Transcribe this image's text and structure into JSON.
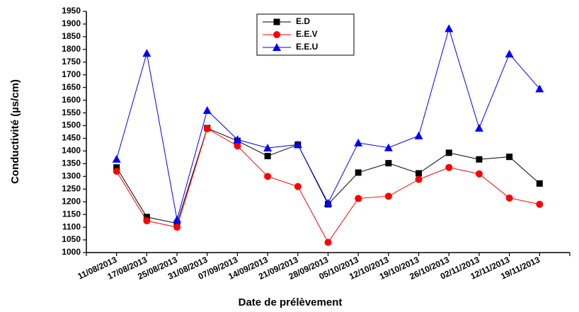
{
  "chart_data": {
    "type": "line",
    "x_label": "Date de prélèvement",
    "y_label": "Conductivité (µs/cm)",
    "categories": [
      "11/08/2013",
      "17/08/2013",
      "25/08/2013",
      "31/08/2013",
      "07/09/2013",
      "14/09/2013",
      "21/09/2013",
      "28/09/2013",
      "05/10/2013",
      "12/10/2013",
      "19/10/2013",
      "26/10/2013",
      "02/11/2013",
      "12/11/2013",
      "19/11/2013"
    ],
    "series": [
      {
        "name": "E.D",
        "color": "#000000",
        "marker": "square",
        "values": [
          1335,
          1140,
          1115,
          1490,
          1440,
          1380,
          1425,
          1190,
          1315,
          1352,
          1312,
          1393,
          1367,
          1377,
          1272
        ]
      },
      {
        "name": "E.E.V",
        "color": "#ff0000",
        "marker": "circle",
        "values": [
          1320,
          1125,
          1100,
          1488,
          1420,
          1300,
          1260,
          1040,
          1213,
          1222,
          1288,
          1335,
          1310,
          1215,
          1190
        ]
      },
      {
        "name": "E.E.U",
        "color": "#0000ff",
        "marker": "triangle",
        "values": [
          1368,
          1785,
          1130,
          1560,
          1445,
          1412,
          1425,
          1195,
          1432,
          1413,
          1460,
          1882,
          1490,
          1782,
          1645
        ]
      }
    ],
    "ylim": [
      1000,
      1950
    ],
    "yticks": [
      1000,
      1050,
      1100,
      1150,
      1200,
      1250,
      1300,
      1350,
      1400,
      1450,
      1500,
      1550,
      1600,
      1650,
      1700,
      1750,
      1800,
      1850,
      1900,
      1950
    ],
    "grid": false
  }
}
